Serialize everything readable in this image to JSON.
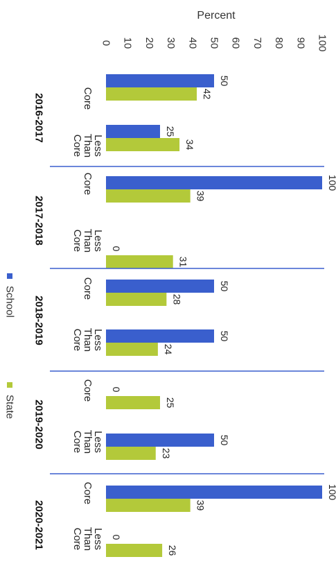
{
  "chart_data": {
    "type": "bar",
    "orientation": "rotated-90",
    "ylabel": "Percent",
    "ylim": [
      0,
      100
    ],
    "yticks": [
      0,
      10,
      20,
      30,
      40,
      50,
      60,
      70,
      80,
      90,
      100
    ],
    "years": [
      "2016-2017",
      "2017-2018",
      "2018-2019",
      "2019-2020",
      "2020-2021"
    ],
    "categories": [
      {
        "year": "2016-2017",
        "label": [
          "Core"
        ]
      },
      {
        "year": "2016-2017",
        "label": [
          "Less",
          "Than",
          "Core"
        ]
      },
      {
        "year": "2017-2018",
        "label": [
          "Core"
        ]
      },
      {
        "year": "2017-2018",
        "label": [
          "Less",
          "Than",
          "Core"
        ]
      },
      {
        "year": "2018-2019",
        "label": [
          "Core"
        ]
      },
      {
        "year": "2018-2019",
        "label": [
          "Less",
          "Than",
          "Core"
        ]
      },
      {
        "year": "2019-2020",
        "label": [
          "Core"
        ]
      },
      {
        "year": "2019-2020",
        "label": [
          "Less",
          "Than",
          "Core"
        ]
      },
      {
        "year": "2020-2021",
        "label": [
          "Core"
        ]
      },
      {
        "year": "2020-2021",
        "label": [
          "Less",
          "Than",
          "Core"
        ]
      }
    ],
    "series": [
      {
        "name": "School",
        "color": "#3a5fcd",
        "values": [
          50,
          25,
          100,
          0,
          50,
          50,
          0,
          50,
          100,
          0
        ]
      },
      {
        "name": "State",
        "color": "#b3c93a",
        "values": [
          42,
          34,
          39,
          31,
          28,
          24,
          25,
          23,
          39,
          26
        ]
      }
    ],
    "legend_position": "bottom"
  }
}
